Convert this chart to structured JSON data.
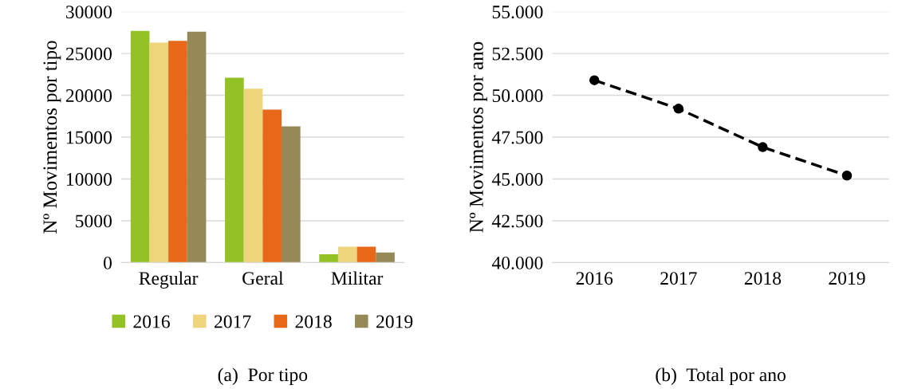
{
  "chart_data": [
    {
      "type": "bar",
      "title": "(a)  Por tipo",
      "ylabel": "Nº Movimentos por tipo",
      "categories": [
        "Regular",
        "Geral",
        "Militar"
      ],
      "series": [
        {
          "name": "2016",
          "color": "#93c225",
          "values": [
            27700,
            22100,
            1000
          ]
        },
        {
          "name": "2017",
          "color": "#eed47a",
          "values": [
            26300,
            20800,
            1900
          ]
        },
        {
          "name": "2018",
          "color": "#e8681a",
          "values": [
            26500,
            18300,
            1900
          ]
        },
        {
          "name": "2019",
          "color": "#948957",
          "values": [
            27600,
            16300,
            1200
          ]
        }
      ],
      "ylim": [
        0,
        30000
      ],
      "yticks": [
        0,
        5000,
        10000,
        15000,
        20000,
        25000,
        30000
      ],
      "grid": "y",
      "legend": "bottom"
    },
    {
      "type": "line",
      "title": "(b)  Total por ano",
      "ylabel": "Nº Movimentos por ano",
      "categories": [
        "2016",
        "2017",
        "2018",
        "2019"
      ],
      "series": [
        {
          "color": "#000000",
          "values": [
            50900,
            49200,
            46900,
            45200
          ]
        }
      ],
      "ylim": [
        40000,
        55000
      ],
      "yticks": [
        {
          "value": 40000,
          "label": "40.000"
        },
        {
          "value": 42500,
          "label": "42.500"
        },
        {
          "value": 45000,
          "label": "45.000"
        },
        {
          "value": 47500,
          "label": "47.500"
        },
        {
          "value": 50000,
          "label": "50.000"
        },
        {
          "value": 52500,
          "label": "52.500"
        },
        {
          "value": 55000,
          "label": "55.000"
        }
      ],
      "grid": "y",
      "marker": "circle",
      "line_style": "dashed"
    }
  ]
}
